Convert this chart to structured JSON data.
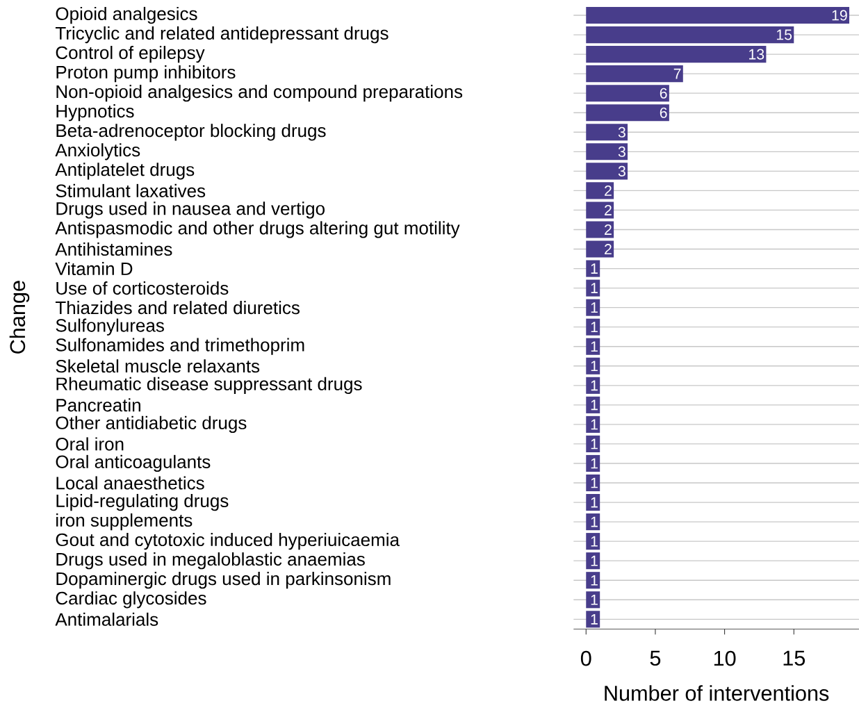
{
  "chart_data": {
    "type": "bar",
    "orientation": "horizontal",
    "xlabel": "Number of interventions",
    "ylabel": "Change",
    "categories": [
      "Opioid analgesics",
      "Tricyclic and related antidepressant drugs",
      "Control of epilepsy",
      "Proton pump inhibitors",
      "Non-opioid analgesics and compound preparations",
      "Hypnotics",
      "Beta-adrenoceptor blocking drugs",
      "Anxiolytics",
      "Antiplatelet drugs",
      "Stimulant laxatives",
      "Drugs used in nausea and vertigo",
      "Antispasmodic and other drugs altering gut motility",
      "Antihistamines",
      "Vitamin D",
      "Use of corticosteroids",
      "Thiazides and related diuretics",
      "Sulfonylureas",
      "Sulfonamides and trimethoprim",
      "Skeletal muscle relaxants",
      "Rheumatic disease suppressant drugs",
      "Pancreatin",
      "Other antidiabetic drugs",
      "Oral iron",
      "Oral anticoagulants",
      "Local anaesthetics",
      "Lipid-regulating drugs",
      "iron supplements",
      "Gout and cytotoxic induced hyperiuicaemia",
      "Drugs used in megaloblastic anaemias",
      "Dopaminergic drugs used in parkinsonism",
      "Cardiac glycosides",
      "Antimalarials"
    ],
    "values": [
      19,
      15,
      13,
      7,
      6,
      6,
      3,
      3,
      3,
      2,
      2,
      2,
      2,
      1,
      1,
      1,
      1,
      1,
      1,
      1,
      1,
      1,
      1,
      1,
      1,
      1,
      1,
      1,
      1,
      1,
      1,
      1
    ],
    "color": "#483d8b",
    "data_labels": true,
    "grid": "y",
    "xlim": [
      -0.9,
      19.7
    ],
    "xticks": [
      0,
      5,
      10,
      15
    ]
  }
}
